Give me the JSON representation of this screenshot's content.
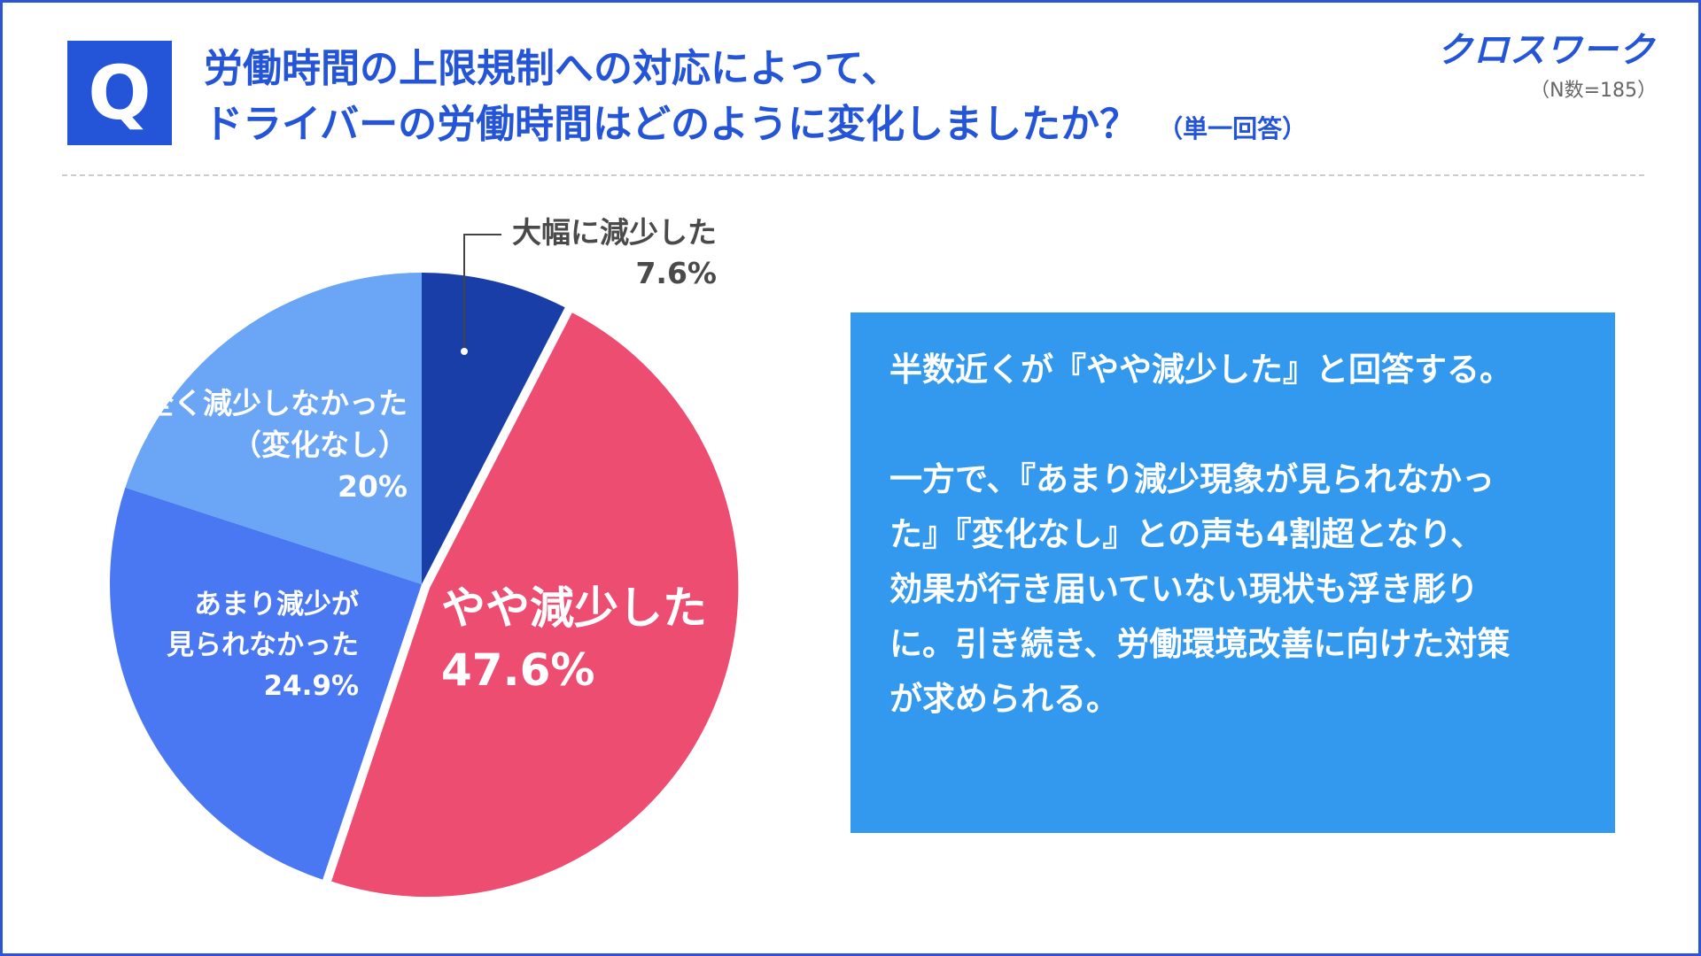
{
  "header": {
    "q_mark": "Q",
    "title_line1": "労働時間の上限規制への対応によって、",
    "title_line2": "ドライバーの労働時間はどのように変化しましたか？",
    "answer_type": "（単一回答）",
    "brand": "クロスワーク",
    "sample": "（N数=185）"
  },
  "colors": {
    "accent": "#2454d8",
    "slice_large_decrease": "#1a3ea8",
    "slice_slight_decrease": "#ee4d72",
    "slice_not_much": "#4a78f2",
    "slice_no_change": "#6aa5f6",
    "summary_bg": "#3399ee"
  },
  "chart_data": {
    "type": "pie",
    "slices": [
      {
        "label": "大幅に減少した",
        "value": 7.6,
        "display": "7.6%"
      },
      {
        "label": "やや減少した",
        "value": 47.6,
        "display": "47.6%"
      },
      {
        "label_lines": [
          "あまり減少が",
          "見られなかった"
        ],
        "value": 24.9,
        "display": "24.9%"
      },
      {
        "label_lines": [
          "全く減少しなかった",
          "（変化なし）"
        ],
        "value": 20,
        "display": "20%"
      }
    ]
  },
  "summary": {
    "p1": "半数近くが『やや減少した』と回答する。",
    "p2_lines": [
      "一方で、『あまり減少現象が見られなかっ",
      "た』『変化なし』との声も4割超となり、",
      "効果が行き届いていない現状も浮き彫り",
      "に。引き続き、労働環境改善に向けた対策",
      "が求められる。"
    ]
  }
}
